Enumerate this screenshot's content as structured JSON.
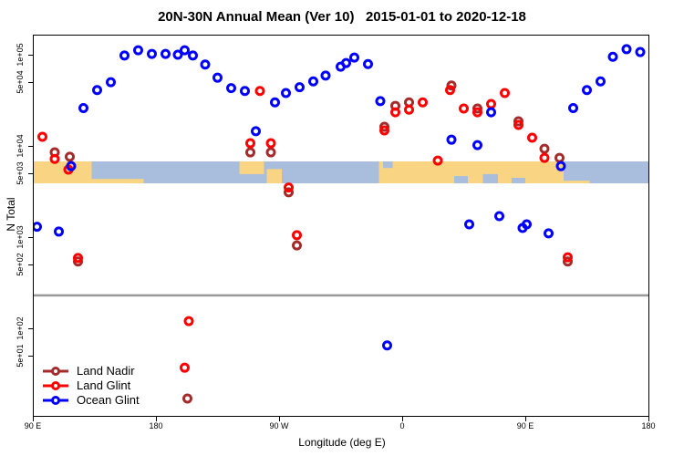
{
  "title": "20N-30N Annual Mean (Ver 10)   2015-01-01 to 2020-12-18",
  "axes": {
    "x_label": "Longitude (deg E)",
    "y_label": "N Total",
    "x_ticks": [
      {
        "pos": 90,
        "label": "90 E"
      },
      {
        "pos": 180,
        "label": "180"
      },
      {
        "pos": 270,
        "label": "90 W"
      },
      {
        "pos": 360,
        "label": "0"
      },
      {
        "pos": 450,
        "label": "90 E"
      },
      {
        "pos": 540,
        "label": "180"
      }
    ],
    "y_ticks": [
      {
        "value": 100000,
        "label": "1e+05"
      },
      {
        "value": 50000,
        "label": "5e+04"
      },
      {
        "value": 10000,
        "label": "1e+04"
      },
      {
        "value": 5000,
        "label": "5e+03"
      },
      {
        "value": 1000,
        "label": "1e+03"
      },
      {
        "value": 500,
        "label": "5e+02"
      },
      {
        "value": 100,
        "label": "1e+02"
      },
      {
        "value": 50,
        "label": "5e+01"
      }
    ]
  },
  "legend": {
    "entries": [
      {
        "label": "Land Nadir",
        "color": "#A52A2A"
      },
      {
        "label": "Land Glint",
        "color": "#FF0000"
      },
      {
        "label": "Ocean Glint",
        "color": "#0000FF"
      }
    ]
  },
  "chart_data": {
    "type": "scatter",
    "title": "20N-30N Annual Mean (Ver 10)   2015-01-01 to 2020-12-18",
    "xlabel": "Longitude (deg E)",
    "ylabel": "N Total",
    "x_axis": {
      "min": 90,
      "max": 540,
      "note": "degrees eastward along axis starting at 90E; 270=90W, 360=0, 450=90E"
    },
    "y_axis": {
      "scale": "log10",
      "min": 11,
      "max": 160000
    },
    "grid": false,
    "legend_position": "bottom-left",
    "separator_line_n": 230,
    "separator_color": "#999999",
    "map_band": {
      "ocean_color": "#A8BEDC",
      "land_color": "#F8D483",
      "band_n_top": 4100,
      "band_n_bottom": 2350,
      "land_segments": [
        {
          "t0": 90,
          "t1": 133,
          "f0": 0,
          "f1": 1
        },
        {
          "t0": 130,
          "t1": 171,
          "f0": 0.8,
          "f1": 1
        },
        {
          "t0": 241,
          "t1": 259,
          "f0": 0,
          "f1": 0.58
        },
        {
          "t0": 261,
          "t1": 272,
          "f0": 0.35,
          "f1": 1
        },
        {
          "t0": 343,
          "t1": 478,
          "f0": 0,
          "f1": 1
        },
        {
          "t0": 478,
          "t1": 497,
          "f0": 0.88,
          "f1": 1
        }
      ],
      "ocean_notches": [
        {
          "t0": 346,
          "t1": 353,
          "f0": 0,
          "f1": 0.3
        },
        {
          "t0": 398,
          "t1": 408,
          "f0": 0.67,
          "f1": 1
        },
        {
          "t0": 419,
          "t1": 430,
          "f0": 0.58,
          "f1": 1
        },
        {
          "t0": 440,
          "t1": 450,
          "f0": 0.75,
          "f1": 1
        }
      ]
    },
    "series": [
      {
        "name": "Land Nadir",
        "color": "#A52A2A",
        "points": [
          {
            "x": 106,
            "n": 8500
          },
          {
            "x": 117,
            "n": 7600
          },
          {
            "x": 123,
            "n": 540
          },
          {
            "x": 203,
            "n": 17
          },
          {
            "x": 249,
            "n": 8500
          },
          {
            "x": 264,
            "n": 8500
          },
          {
            "x": 277,
            "n": 3100
          },
          {
            "x": 283,
            "n": 810
          },
          {
            "x": 347,
            "n": 16200
          },
          {
            "x": 355,
            "n": 27500
          },
          {
            "x": 365,
            "n": 30000
          },
          {
            "x": 396,
            "n": 46000
          },
          {
            "x": 415,
            "n": 25700
          },
          {
            "x": 445,
            "n": 18600
          },
          {
            "x": 464,
            "n": 9300
          },
          {
            "x": 475,
            "n": 7400
          },
          {
            "x": 481,
            "n": 540
          }
        ]
      },
      {
        "name": "Land Glint",
        "color": "#FF0000",
        "points": [
          {
            "x": 97,
            "n": 12600
          },
          {
            "x": 106,
            "n": 7200
          },
          {
            "x": 116,
            "n": 5500
          },
          {
            "x": 123,
            "n": 590
          },
          {
            "x": 201,
            "n": 37
          },
          {
            "x": 204,
            "n": 120
          },
          {
            "x": 249,
            "n": 10700
          },
          {
            "x": 256,
            "n": 40000
          },
          {
            "x": 264,
            "n": 10700
          },
          {
            "x": 277,
            "n": 3500
          },
          {
            "x": 283,
            "n": 1050
          },
          {
            "x": 347,
            "n": 14800
          },
          {
            "x": 355,
            "n": 23400
          },
          {
            "x": 365,
            "n": 25000
          },
          {
            "x": 375,
            "n": 30000
          },
          {
            "x": 386,
            "n": 6900
          },
          {
            "x": 395,
            "n": 41000
          },
          {
            "x": 405,
            "n": 25700
          },
          {
            "x": 415,
            "n": 23400
          },
          {
            "x": 425,
            "n": 28800
          },
          {
            "x": 435,
            "n": 38000
          },
          {
            "x": 445,
            "n": 17000
          },
          {
            "x": 455,
            "n": 12300
          },
          {
            "x": 464,
            "n": 7400
          },
          {
            "x": 481,
            "n": 600
          }
        ]
      },
      {
        "name": "Ocean Glint",
        "color": "#0000FF",
        "points": [
          {
            "x": 93,
            "n": 1300
          },
          {
            "x": 109,
            "n": 1150
          },
          {
            "x": 118,
            "n": 6000
          },
          {
            "x": 127,
            "n": 26000
          },
          {
            "x": 137,
            "n": 41000
          },
          {
            "x": 147,
            "n": 50000
          },
          {
            "x": 157,
            "n": 98000
          },
          {
            "x": 167,
            "n": 112000
          },
          {
            "x": 177,
            "n": 102000
          },
          {
            "x": 187,
            "n": 102000
          },
          {
            "x": 196,
            "n": 100000
          },
          {
            "x": 201,
            "n": 112000
          },
          {
            "x": 207,
            "n": 98000
          },
          {
            "x": 216,
            "n": 78000
          },
          {
            "x": 225,
            "n": 56000
          },
          {
            "x": 235,
            "n": 43000
          },
          {
            "x": 245,
            "n": 40000
          },
          {
            "x": 253,
            "n": 14500
          },
          {
            "x": 267,
            "n": 30000
          },
          {
            "x": 275,
            "n": 38000
          },
          {
            "x": 285,
            "n": 44000
          },
          {
            "x": 295,
            "n": 51000
          },
          {
            "x": 304,
            "n": 59000
          },
          {
            "x": 315,
            "n": 74000
          },
          {
            "x": 319,
            "n": 81000
          },
          {
            "x": 325,
            "n": 93000
          },
          {
            "x": 335,
            "n": 79000
          },
          {
            "x": 344,
            "n": 31000
          },
          {
            "x": 349,
            "n": 65
          },
          {
            "x": 396,
            "n": 11700
          },
          {
            "x": 409,
            "n": 1380
          },
          {
            "x": 415,
            "n": 10200
          },
          {
            "x": 425,
            "n": 23400
          },
          {
            "x": 431,
            "n": 1700
          },
          {
            "x": 448,
            "n": 1260
          },
          {
            "x": 451,
            "n": 1380
          },
          {
            "x": 467,
            "n": 1100
          },
          {
            "x": 476,
            "n": 6000
          },
          {
            "x": 485,
            "n": 26000
          },
          {
            "x": 495,
            "n": 41000
          },
          {
            "x": 505,
            "n": 51000
          },
          {
            "x": 514,
            "n": 95000
          },
          {
            "x": 524,
            "n": 115000
          },
          {
            "x": 534,
            "n": 107000
          }
        ]
      }
    ]
  }
}
